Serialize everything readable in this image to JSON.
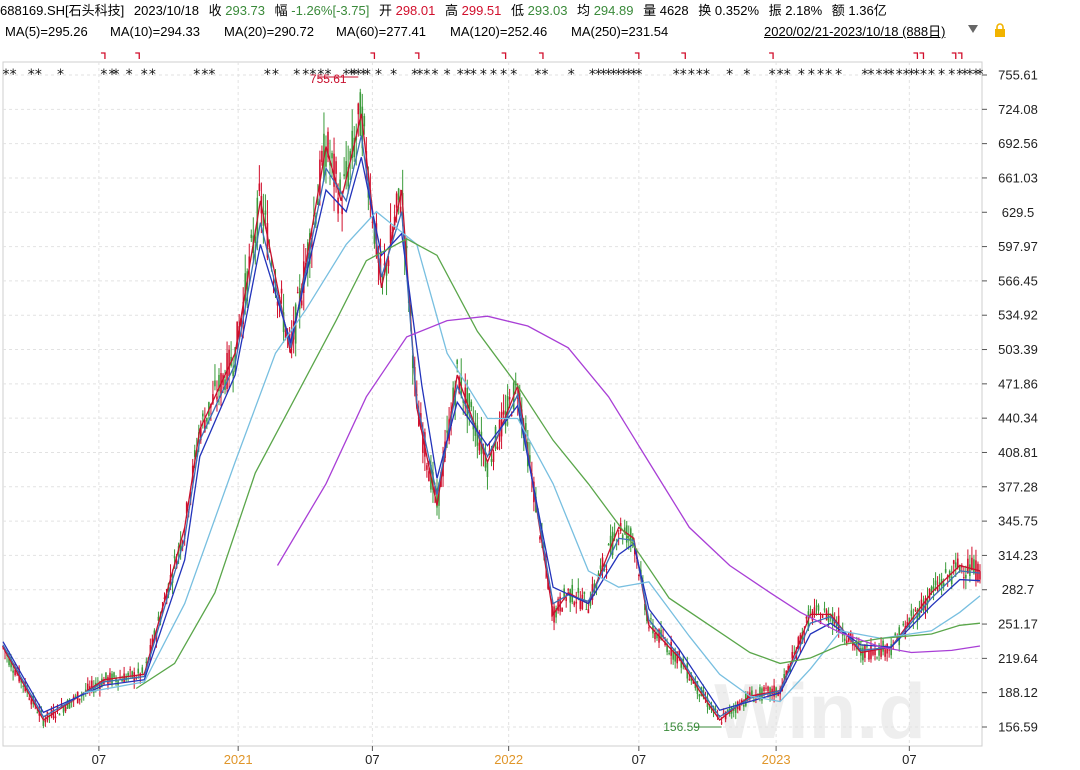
{
  "header": {
    "code": "688169.SH[石头科技]",
    "date": "2023/10/18",
    "close_label": "收",
    "close": "293.73",
    "amp_label": "幅",
    "amp": "-1.26%[-3.75]",
    "open_label": "开",
    "open": "298.01",
    "high_label": "高",
    "high": "299.51",
    "low_label": "低",
    "low": "293.03",
    "avg_label": "均",
    "avg": "294.89",
    "vol_label": "量",
    "vol": "4628",
    "turn_label": "换",
    "turn": "0.352%",
    "swing_label": "振",
    "swing": "2.18%",
    "amt_label": "额",
    "amt": "1.36亿"
  },
  "ma_labels": [
    {
      "text": "MA(5)=295.26",
      "color": "#c8102e"
    },
    {
      "text": "MA(10)=294.33",
      "color": "#3b6fb6"
    },
    {
      "text": "MA(20)=290.72",
      "color": "#2233bb"
    },
    {
      "text": "MA(60)=277.41",
      "color": "#78bfe0"
    },
    {
      "text": "MA(120)=252.46",
      "color": "#5aa64a"
    },
    {
      "text": "MA(250)=231.54",
      "color": "#a93fd6"
    }
  ],
  "range_text": "2020/02/21-2023/10/18 (888日)",
  "watermark": "Win.d",
  "chart_data": {
    "type": "line",
    "y_ticks": [
      "755.61",
      "724.08",
      "692.56",
      "661.03",
      "629.5",
      "597.97",
      "566.45",
      "534.92",
      "503.39",
      "471.86",
      "440.34",
      "408.81",
      "377.28",
      "345.75",
      "314.23",
      "282.7",
      "251.17",
      "219.64",
      "188.12",
      "156.59"
    ],
    "ylim": [
      156.59,
      755.61
    ],
    "x_ticks": [
      {
        "label": "07",
        "idx": 95,
        "year": false
      },
      {
        "label": "2021",
        "idx": 233,
        "year": true
      },
      {
        "label": "07",
        "idx": 366,
        "year": false
      },
      {
        "label": "2022",
        "idx": 501,
        "year": true
      },
      {
        "label": "07",
        "idx": 630,
        "year": false
      },
      {
        "label": "2023",
        "idx": 766,
        "year": true
      },
      {
        "label": "07",
        "idx": 898,
        "year": false
      }
    ],
    "series": [
      {
        "name": "MA(5)",
        "color": "#c8102e",
        "points": [
          [
            0,
            230
          ],
          [
            40,
            163
          ],
          [
            100,
            200
          ],
          [
            140,
            205
          ],
          [
            180,
            340
          ],
          [
            195,
            430
          ],
          [
            230,
            500
          ],
          [
            255,
            640
          ],
          [
            285,
            500
          ],
          [
            320,
            690
          ],
          [
            335,
            640
          ],
          [
            355,
            720
          ],
          [
            375,
            560
          ],
          [
            395,
            650
          ],
          [
            410,
            450
          ],
          [
            430,
            360
          ],
          [
            450,
            480
          ],
          [
            480,
            400
          ],
          [
            510,
            470
          ],
          [
            545,
            260
          ],
          [
            560,
            280
          ],
          [
            580,
            270
          ],
          [
            610,
            340
          ],
          [
            625,
            330
          ],
          [
            640,
            250
          ],
          [
            670,
            220
          ],
          [
            690,
            190
          ],
          [
            710,
            163
          ],
          [
            740,
            185
          ],
          [
            770,
            190
          ],
          [
            800,
            260
          ],
          [
            820,
            260
          ],
          [
            850,
            225
          ],
          [
            880,
            230
          ],
          [
            920,
            280
          ],
          [
            948,
            305
          ],
          [
            968,
            300
          ]
        ]
      },
      {
        "name": "MA(10)",
        "color": "#3b6fb6",
        "points": [
          [
            0,
            232
          ],
          [
            40,
            166
          ],
          [
            100,
            198
          ],
          [
            140,
            203
          ],
          [
            180,
            330
          ],
          [
            195,
            420
          ],
          [
            230,
            490
          ],
          [
            255,
            620
          ],
          [
            285,
            505
          ],
          [
            320,
            670
          ],
          [
            340,
            640
          ],
          [
            355,
            700
          ],
          [
            375,
            570
          ],
          [
            395,
            630
          ],
          [
            410,
            455
          ],
          [
            430,
            370
          ],
          [
            450,
            470
          ],
          [
            480,
            405
          ],
          [
            510,
            462
          ],
          [
            545,
            270
          ],
          [
            560,
            278
          ],
          [
            580,
            272
          ],
          [
            610,
            330
          ],
          [
            625,
            328
          ],
          [
            640,
            255
          ],
          [
            670,
            222
          ],
          [
            690,
            193
          ],
          [
            710,
            166
          ],
          [
            740,
            183
          ],
          [
            770,
            190
          ],
          [
            800,
            252
          ],
          [
            820,
            258
          ],
          [
            850,
            227
          ],
          [
            880,
            230
          ],
          [
            920,
            275
          ],
          [
            948,
            300
          ],
          [
            968,
            298
          ]
        ]
      },
      {
        "name": "MA(20)",
        "color": "#2233bb",
        "points": [
          [
            0,
            235
          ],
          [
            40,
            170
          ],
          [
            100,
            195
          ],
          [
            140,
            200
          ],
          [
            180,
            310
          ],
          [
            195,
            405
          ],
          [
            230,
            480
          ],
          [
            255,
            600
          ],
          [
            285,
            510
          ],
          [
            320,
            650
          ],
          [
            340,
            630
          ],
          [
            355,
            680
          ],
          [
            375,
            590
          ],
          [
            395,
            610
          ],
          [
            415,
            470
          ],
          [
            430,
            385
          ],
          [
            450,
            455
          ],
          [
            480,
            415
          ],
          [
            510,
            452
          ],
          [
            545,
            285
          ],
          [
            580,
            270
          ],
          [
            610,
            315
          ],
          [
            625,
            325
          ],
          [
            640,
            265
          ],
          [
            670,
            228
          ],
          [
            690,
            200
          ],
          [
            710,
            172
          ],
          [
            740,
            180
          ],
          [
            770,
            188
          ],
          [
            800,
            242
          ],
          [
            820,
            252
          ],
          [
            850,
            232
          ],
          [
            880,
            230
          ],
          [
            920,
            268
          ],
          [
            948,
            292
          ],
          [
            968,
            291
          ]
        ]
      },
      {
        "name": "MA(60)",
        "color": "#78bfe0",
        "points": [
          [
            80,
            188
          ],
          [
            140,
            198
          ],
          [
            180,
            270
          ],
          [
            230,
            400
          ],
          [
            270,
            500
          ],
          [
            300,
            540
          ],
          [
            340,
            600
          ],
          [
            370,
            630
          ],
          [
            410,
            600
          ],
          [
            440,
            500
          ],
          [
            480,
            440
          ],
          [
            510,
            440
          ],
          [
            545,
            380
          ],
          [
            580,
            300
          ],
          [
            610,
            285
          ],
          [
            640,
            290
          ],
          [
            680,
            240
          ],
          [
            710,
            205
          ],
          [
            740,
            185
          ],
          [
            770,
            180
          ],
          [
            800,
            210
          ],
          [
            830,
            245
          ],
          [
            870,
            238
          ],
          [
            920,
            245
          ],
          [
            948,
            262
          ],
          [
            968,
            277
          ]
        ]
      },
      {
        "name": "MA(120)",
        "color": "#5aa64a",
        "points": [
          [
            132,
            192
          ],
          [
            170,
            215
          ],
          [
            210,
            280
          ],
          [
            250,
            390
          ],
          [
            290,
            460
          ],
          [
            330,
            530
          ],
          [
            360,
            585
          ],
          [
            400,
            605
          ],
          [
            430,
            590
          ],
          [
            470,
            520
          ],
          [
            510,
            470
          ],
          [
            545,
            420
          ],
          [
            580,
            380
          ],
          [
            620,
            330
          ],
          [
            660,
            275
          ],
          [
            700,
            250
          ],
          [
            740,
            225
          ],
          [
            770,
            215
          ],
          [
            800,
            220
          ],
          [
            830,
            232
          ],
          [
            870,
            238
          ],
          [
            920,
            242
          ],
          [
            948,
            250
          ],
          [
            968,
            252
          ]
        ]
      },
      {
        "name": "MA(250)",
        "color": "#a93fd6",
        "points": [
          [
            272,
            305
          ],
          [
            320,
            380
          ],
          [
            360,
            460
          ],
          [
            400,
            515
          ],
          [
            440,
            530
          ],
          [
            480,
            534
          ],
          [
            520,
            525
          ],
          [
            560,
            505
          ],
          [
            600,
            460
          ],
          [
            640,
            400
          ],
          [
            680,
            340
          ],
          [
            720,
            305
          ],
          [
            760,
            280
          ],
          [
            790,
            262
          ],
          [
            830,
            243
          ],
          [
            870,
            230
          ],
          [
            900,
            225
          ],
          [
            940,
            227
          ],
          [
            968,
            231
          ]
        ]
      }
    ],
    "annotations": [
      {
        "text": "755.61",
        "idx": 352,
        "value": 755.61,
        "color": "#c8102e"
      },
      {
        "text": "156.59",
        "idx": 712,
        "value": 156.59,
        "color": "#3a8a3a"
      }
    ],
    "grid": true
  }
}
